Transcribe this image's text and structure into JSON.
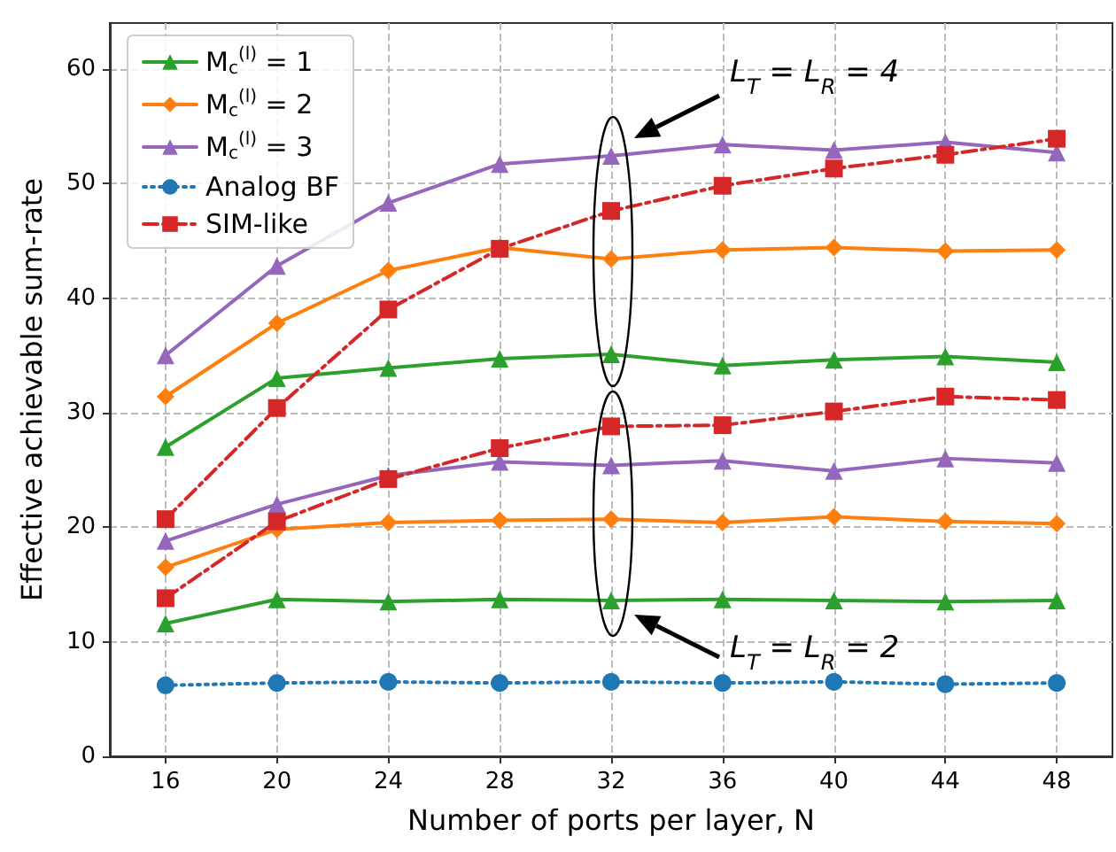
{
  "chart_data": {
    "type": "line",
    "xlabel": "Number of ports per layer, N",
    "ylabel": "Effective achievable sum-rate",
    "x": [
      16,
      20,
      24,
      28,
      32,
      36,
      40,
      44,
      48
    ],
    "xlim": [
      14,
      50
    ],
    "xticks": [
      16,
      20,
      24,
      28,
      32,
      36,
      40,
      44,
      48
    ],
    "ylim": [
      0,
      64
    ],
    "yticks": [
      0,
      10,
      20,
      30,
      40,
      50,
      60
    ],
    "grid": true,
    "legend": "top left",
    "series": [
      {
        "name": "M$_{c}$$^{(l)}$ = 1",
        "color": "#2ca02c",
        "marker": "triangle",
        "line_style": "solid",
        "values": [
          27.0,
          33.0,
          33.9,
          34.7,
          35.1,
          34.1,
          34.6,
          34.9,
          34.4
        ]
      },
      {
        "name": "M$_{c}$$^{(l)}$ = 2",
        "color": "#ff7f0e",
        "marker": "diamond",
        "line_style": "solid",
        "values": [
          31.4,
          37.8,
          42.4,
          44.4,
          43.4,
          44.2,
          44.4,
          44.1,
          44.2
        ]
      },
      {
        "name": "M$_{c}$$^{(l)}$ = 3",
        "color": "#9467bd",
        "marker": "triangle",
        "line_style": "solid",
        "values": [
          35.0,
          42.8,
          48.3,
          51.7,
          52.4,
          53.4,
          52.9,
          53.6,
          52.7
        ]
      },
      {
        "name": "Analog BF",
        "color": "#1f77b4",
        "marker": "circle",
        "line_style": "dotted",
        "values": [
          6.2,
          6.4,
          6.5,
          6.4,
          6.5,
          6.4,
          6.5,
          6.3,
          6.4
        ]
      },
      {
        "name": "SIM-like",
        "color": "#d62728",
        "marker": "square",
        "line_style": "dashed",
        "values": [
          20.7,
          30.4,
          39.0,
          44.3,
          47.6,
          49.8,
          51.3,
          52.5,
          53.9
        ]
      },
      {
        "color": "#2ca02c",
        "marker": "triangle",
        "line_style": "solid",
        "values": [
          11.6,
          13.7,
          13.5,
          13.7,
          13.6,
          13.7,
          13.6,
          13.5,
          13.6
        ]
      },
      {
        "color": "#ff7f0e",
        "marker": "diamond",
        "line_style": "solid",
        "values": [
          16.5,
          19.8,
          20.4,
          20.6,
          20.7,
          20.4,
          20.9,
          20.5,
          20.3
        ]
      },
      {
        "color": "#9467bd",
        "marker": "triangle",
        "line_style": "solid",
        "values": [
          18.8,
          22.0,
          24.5,
          25.7,
          25.4,
          25.8,
          24.9,
          26.0,
          25.6
        ]
      },
      {
        "color": "#d62728",
        "marker": "square",
        "line_style": "dashed",
        "values": [
          13.8,
          20.5,
          24.2,
          26.9,
          28.8,
          28.9,
          30.1,
          31.4,
          31.1
        ]
      }
    ],
    "annotations": [
      "L$_{T}$ = L$_{R}$ = 4",
      "L$_{T}$ = L$_{R}$ = 2"
    ]
  }
}
